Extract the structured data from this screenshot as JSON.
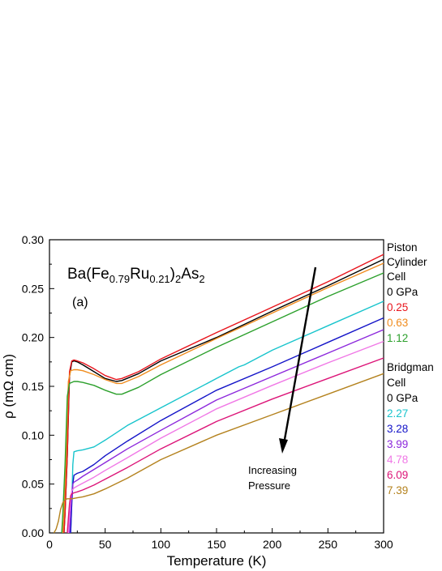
{
  "chart_data": {
    "type": "line",
    "xlabel": "Temperature (K)",
    "ylabel": "ρ (mΩ cm)",
    "xlim": [
      0,
      300
    ],
    "ylim": [
      0,
      0.3
    ],
    "xticks": [
      "0",
      "50",
      "100",
      "150",
      "200",
      "250",
      "300"
    ],
    "yticks": [
      "0.00",
      "0.05",
      "0.10",
      "0.15",
      "0.20",
      "0.25",
      "0.30"
    ],
    "grid": false,
    "formula": {
      "p1": "Ba(Fe",
      "s1": "0.79",
      "p2": "Ru",
      "s2": "0.21",
      "p3": ")",
      "s3": "2",
      "p4": "As",
      "s4": "2"
    },
    "panel_label": "(a)",
    "annotation": {
      "line1": "Increasing",
      "line2": "Pressure"
    },
    "legend_groups": [
      {
        "header": [
          "Piston",
          "Cylinder",
          "Cell"
        ]
      },
      {
        "header": [
          "Bridgman",
          "Cell"
        ]
      }
    ],
    "series": [
      {
        "name": "0 GPa",
        "color": "#000000",
        "group": 0,
        "x": [
          13,
          14,
          16,
          18,
          20,
          22,
          25,
          30,
          40,
          50,
          60,
          65,
          80,
          100,
          150,
          200,
          250,
          300
        ],
        "y": [
          0.0,
          0.02,
          0.08,
          0.16,
          0.175,
          0.176,
          0.175,
          0.172,
          0.165,
          0.158,
          0.155,
          0.156,
          0.163,
          0.176,
          0.2,
          0.227,
          0.253,
          0.28
        ]
      },
      {
        "name": "0.25",
        "color": "#e8141c",
        "group": 0,
        "x": [
          13,
          14,
          16,
          18,
          20,
          22,
          25,
          30,
          40,
          50,
          60,
          65,
          80,
          100,
          150,
          200,
          250,
          300
        ],
        "y": [
          0.0,
          0.02,
          0.08,
          0.165,
          0.176,
          0.177,
          0.176,
          0.174,
          0.168,
          0.161,
          0.157,
          0.158,
          0.165,
          0.178,
          0.205,
          0.231,
          0.257,
          0.285
        ]
      },
      {
        "name": "0.63",
        "color": "#f08c1e",
        "group": 0,
        "x": [
          12,
          13,
          15,
          17,
          19,
          22,
          25,
          30,
          40,
          50,
          60,
          65,
          80,
          100,
          150,
          200,
          250,
          300
        ],
        "y": [
          0.0,
          0.02,
          0.08,
          0.155,
          0.166,
          0.167,
          0.167,
          0.166,
          0.162,
          0.157,
          0.153,
          0.153,
          0.16,
          0.172,
          0.199,
          0.225,
          0.251,
          0.276
        ]
      },
      {
        "name": "1.12",
        "color": "#2ca02c",
        "group": 0,
        "x": [
          11,
          12,
          14,
          16,
          18,
          22,
          25,
          30,
          40,
          50,
          60,
          65,
          80,
          100,
          150,
          200,
          250,
          300
        ],
        "y": [
          0.0,
          0.02,
          0.07,
          0.14,
          0.153,
          0.155,
          0.155,
          0.154,
          0.151,
          0.146,
          0.142,
          0.142,
          0.149,
          0.162,
          0.19,
          0.216,
          0.242,
          0.266
        ]
      },
      {
        "name": "0 GPa",
        "color": "#000000",
        "group": 1,
        "hidden": true,
        "x": [],
        "y": []
      },
      {
        "name": "2.27",
        "color": "#17c4cc",
        "group": 1,
        "x": [
          19,
          20,
          21,
          22,
          25,
          30,
          40,
          50,
          70,
          100,
          150,
          170,
          175,
          200,
          250,
          300
        ],
        "y": [
          0.0,
          0.03,
          0.07,
          0.083,
          0.084,
          0.085,
          0.088,
          0.095,
          0.11,
          0.128,
          0.158,
          0.17,
          0.172,
          0.187,
          0.212,
          0.237
        ]
      },
      {
        "name": "3.28",
        "color": "#1414c8",
        "group": 1,
        "x": [
          19,
          20,
          21,
          22,
          25,
          30,
          40,
          50,
          70,
          100,
          150,
          200,
          250,
          300
        ],
        "y": [
          0.0,
          0.03,
          0.05,
          0.059,
          0.061,
          0.063,
          0.07,
          0.079,
          0.094,
          0.115,
          0.146,
          0.17,
          0.195,
          0.22
        ]
      },
      {
        "name": "3.99",
        "color": "#8c28dc",
        "group": 1,
        "x": [
          18,
          19,
          20,
          21,
          22,
          25,
          30,
          40,
          50,
          70,
          100,
          150,
          200,
          250,
          300
        ],
        "y": [
          0.0,
          0.02,
          0.04,
          0.05,
          0.052,
          0.054,
          0.058,
          0.065,
          0.072,
          0.086,
          0.105,
          0.136,
          0.16,
          0.184,
          0.208
        ]
      },
      {
        "name": "4.78",
        "color": "#f078e6",
        "group": 1,
        "x": [
          17,
          18,
          19,
          20,
          22,
          25,
          30,
          40,
          50,
          70,
          100,
          150,
          200,
          250,
          300
        ],
        "y": [
          0.0,
          0.02,
          0.035,
          0.043,
          0.046,
          0.048,
          0.051,
          0.057,
          0.064,
          0.077,
          0.097,
          0.127,
          0.151,
          0.174,
          0.196
        ]
      },
      {
        "name": "6.09",
        "color": "#dc1478",
        "group": 1,
        "x": [
          16,
          17,
          18,
          19,
          20,
          22,
          25,
          30,
          40,
          50,
          70,
          100,
          150,
          200,
          250,
          300
        ],
        "y": [
          0.0,
          0.015,
          0.03,
          0.038,
          0.04,
          0.041,
          0.042,
          0.044,
          0.049,
          0.055,
          0.067,
          0.086,
          0.114,
          0.137,
          0.158,
          0.179
        ]
      },
      {
        "name": "7.39",
        "color": "#b4821e",
        "group": 1,
        "x": [
          4,
          6,
          8,
          10,
          12,
          14,
          16,
          18,
          20,
          25,
          30,
          40,
          50,
          70,
          100,
          150,
          200,
          250,
          300
        ],
        "y": [
          0.0,
          0.004,
          0.012,
          0.024,
          0.031,
          0.034,
          0.035,
          0.035,
          0.035,
          0.036,
          0.037,
          0.04,
          0.045,
          0.056,
          0.075,
          0.1,
          0.121,
          0.142,
          0.163
        ]
      }
    ]
  }
}
